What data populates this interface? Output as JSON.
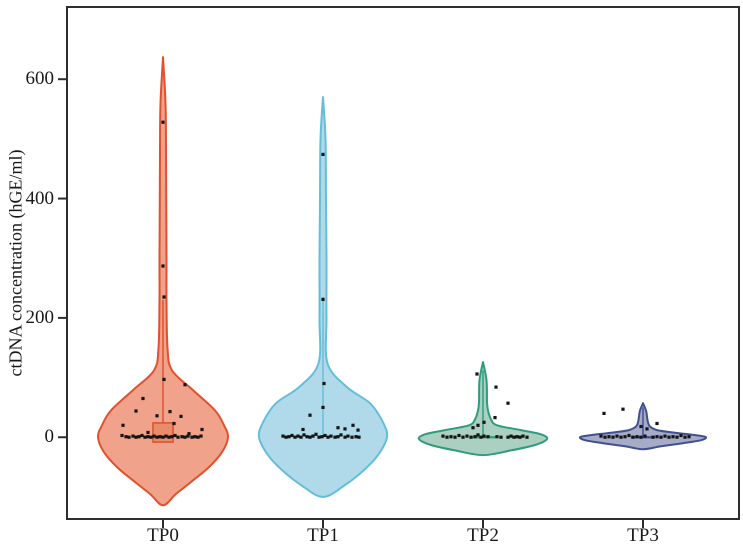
{
  "chart_data": {
    "type": "violin",
    "title": "",
    "xlabel": "",
    "ylabel": "ctDNA concentration (hGE/ml)",
    "categories": [
      "TP0",
      "TP1",
      "TP2",
      "TP3"
    ],
    "yticks": [
      0,
      200,
      400,
      600
    ],
    "ylim": [
      -137,
      721
    ],
    "grid": false,
    "legend": "none",
    "axis_color": "#2e2e2e",
    "point_color": "#151515",
    "series": [
      {
        "name": "TP0",
        "fill": "#F0A28B",
        "stroke": "#E0512D",
        "max_value": 637,
        "min_tail": -114,
        "density_profile": [
          [
            637,
            0
          ],
          [
            560,
            2.5
          ],
          [
            480,
            3
          ],
          [
            400,
            3.2
          ],
          [
            300,
            3.5
          ],
          [
            230,
            3.5
          ],
          [
            150,
            4.5
          ],
          [
            112,
            9
          ],
          [
            79,
            30
          ],
          [
            45,
            52
          ],
          [
            20,
            61
          ],
          [
            0,
            65
          ],
          [
            -25,
            59
          ],
          [
            -50,
            46
          ],
          [
            -75,
            28
          ],
          [
            -95,
            13
          ],
          [
            -114,
            0
          ]
        ],
        "box": {
          "high": 24,
          "low": -8,
          "half_width": 10,
          "fill": "#E98C6C",
          "stroke": "#DB5530"
        },
        "centerline": [
          24,
          230
        ],
        "points": [
          [
            528,
            0
          ],
          [
            287,
            0
          ],
          [
            235,
            1
          ],
          [
            97,
            1
          ],
          [
            88,
            22
          ],
          [
            65,
            -20
          ],
          [
            44,
            -27
          ],
          [
            43,
            7
          ],
          [
            36,
            -6
          ],
          [
            35,
            18
          ],
          [
            23,
            11
          ],
          [
            20,
            -40
          ],
          [
            13,
            39
          ],
          [
            8,
            -15
          ],
          [
            6,
            26
          ],
          [
            3,
            -41
          ],
          [
            1,
            -37
          ],
          [
            0,
            -34
          ],
          [
            2,
            -30
          ],
          [
            0,
            -27
          ],
          [
            1,
            -24
          ],
          [
            3,
            -21
          ],
          [
            0,
            -18
          ],
          [
            1,
            -15
          ],
          [
            0,
            -12
          ],
          [
            2,
            -9
          ],
          [
            0,
            -6
          ],
          [
            1,
            -3
          ],
          [
            0,
            0
          ],
          [
            2,
            3
          ],
          [
            0,
            6
          ],
          [
            1,
            9
          ],
          [
            3,
            12
          ],
          [
            0,
            15
          ],
          [
            1,
            19
          ],
          [
            0,
            22
          ],
          [
            2,
            25
          ],
          [
            0,
            29
          ],
          [
            1,
            32
          ],
          [
            0,
            35
          ],
          [
            2,
            38
          ]
        ]
      },
      {
        "name": "TP1",
        "fill": "#B0DAEA",
        "stroke": "#64BED9",
        "max_value": 570,
        "min_tail": -100,
        "density_profile": [
          [
            570,
            0
          ],
          [
            500,
            2.5
          ],
          [
            400,
            3
          ],
          [
            300,
            3.5
          ],
          [
            200,
            3.5
          ],
          [
            124,
            4.5
          ],
          [
            84,
            24
          ],
          [
            57,
            47
          ],
          [
            25,
            60
          ],
          [
            0,
            64
          ],
          [
            -30,
            55
          ],
          [
            -55,
            41
          ],
          [
            -80,
            22
          ],
          [
            -100,
            0
          ]
        ],
        "centerline": [
          2,
          235
        ],
        "points": [
          [
            474,
            0
          ],
          [
            231,
            0
          ],
          [
            90,
            1
          ],
          [
            50,
            0
          ],
          [
            37,
            -13
          ],
          [
            20,
            30
          ],
          [
            16,
            15
          ],
          [
            14,
            22
          ],
          [
            13,
            -20
          ],
          [
            12,
            35
          ],
          [
            2,
            -40
          ],
          [
            0,
            -37
          ],
          [
            1,
            -34
          ],
          [
            3,
            -31
          ],
          [
            0,
            -28
          ],
          [
            2,
            -25
          ],
          [
            0,
            -22
          ],
          [
            4,
            -19
          ],
          [
            1,
            -16
          ],
          [
            0,
            -13
          ],
          [
            2,
            -10
          ],
          [
            5,
            -7
          ],
          [
            0,
            -4
          ],
          [
            1,
            -1
          ],
          [
            3,
            2
          ],
          [
            0,
            5
          ],
          [
            2,
            8
          ],
          [
            0,
            12
          ],
          [
            1,
            15
          ],
          [
            4,
            18
          ],
          [
            0,
            22
          ],
          [
            2,
            25
          ],
          [
            0,
            29
          ],
          [
            1,
            33
          ],
          [
            0,
            36
          ]
        ]
      },
      {
        "name": "TP2",
        "fill": "#ABCFC0",
        "stroke": "#2F9C7D",
        "max_value": 126,
        "min_tail": -30,
        "density_profile": [
          [
            126,
            0
          ],
          [
            96,
            3.5
          ],
          [
            60,
            4
          ],
          [
            45,
            5
          ],
          [
            30,
            8
          ],
          [
            20,
            14
          ],
          [
            12,
            38
          ],
          [
            5,
            58
          ],
          [
            -3,
            64
          ],
          [
            -13,
            52
          ],
          [
            -22,
            28
          ],
          [
            -30,
            0
          ]
        ],
        "centerline": [
          0,
          112
        ],
        "median_line": {
          "at": 0,
          "half_width": 13
        },
        "points": [
          [
            106,
            -6
          ],
          [
            84,
            13
          ],
          [
            57,
            25
          ],
          [
            33,
            12
          ],
          [
            25,
            1
          ],
          [
            20,
            -5
          ],
          [
            16,
            -10
          ],
          [
            2,
            -40
          ],
          [
            0,
            -36
          ],
          [
            1,
            -32
          ],
          [
            0,
            -28
          ],
          [
            3,
            -24
          ],
          [
            0,
            -20
          ],
          [
            2,
            -16
          ],
          [
            0,
            -12
          ],
          [
            1,
            -8
          ],
          [
            4,
            -5
          ],
          [
            0,
            -2
          ],
          [
            2,
            1
          ],
          [
            1,
            5
          ],
          [
            1,
            14
          ],
          [
            0,
            18
          ],
          [
            0,
            25
          ],
          [
            2,
            28
          ],
          [
            0,
            31
          ],
          [
            1,
            34
          ],
          [
            0,
            37
          ],
          [
            2,
            40
          ],
          [
            0,
            44
          ]
        ]
      },
      {
        "name": "TP3",
        "fill": "#A6ABC8",
        "stroke": "#41508F",
        "max_value": 57,
        "min_tail": -20,
        "density_profile": [
          [
            57,
            0
          ],
          [
            45,
            3
          ],
          [
            35,
            4
          ],
          [
            25,
            5
          ],
          [
            18,
            7
          ],
          [
            12,
            14
          ],
          [
            8,
            30
          ],
          [
            3,
            55
          ],
          [
            0,
            63
          ],
          [
            -5,
            58
          ],
          [
            -10,
            40
          ],
          [
            -15,
            18
          ],
          [
            -20,
            0
          ]
        ],
        "centerline": [
          0,
          50
        ],
        "median_line": {
          "at": 0,
          "half_width": 12
        },
        "points": [
          [
            47,
            -20
          ],
          [
            40,
            -39
          ],
          [
            23,
            14
          ],
          [
            18,
            -2
          ],
          [
            14,
            4
          ],
          [
            2,
            -42
          ],
          [
            0,
            -38
          ],
          [
            1,
            -34
          ],
          [
            0,
            -30
          ],
          [
            2,
            -26
          ],
          [
            0,
            -22
          ],
          [
            1,
            -18
          ],
          [
            3,
            -14
          ],
          [
            0,
            -10
          ],
          [
            1,
            -6
          ],
          [
            0,
            -2
          ],
          [
            2,
            2
          ],
          [
            0,
            10
          ],
          [
            1,
            14
          ],
          [
            0,
            18
          ],
          [
            2,
            22
          ],
          [
            0,
            26
          ],
          [
            1,
            30
          ],
          [
            0,
            34
          ],
          [
            3,
            38
          ],
          [
            0,
            42
          ],
          [
            1,
            46
          ]
        ]
      }
    ]
  }
}
